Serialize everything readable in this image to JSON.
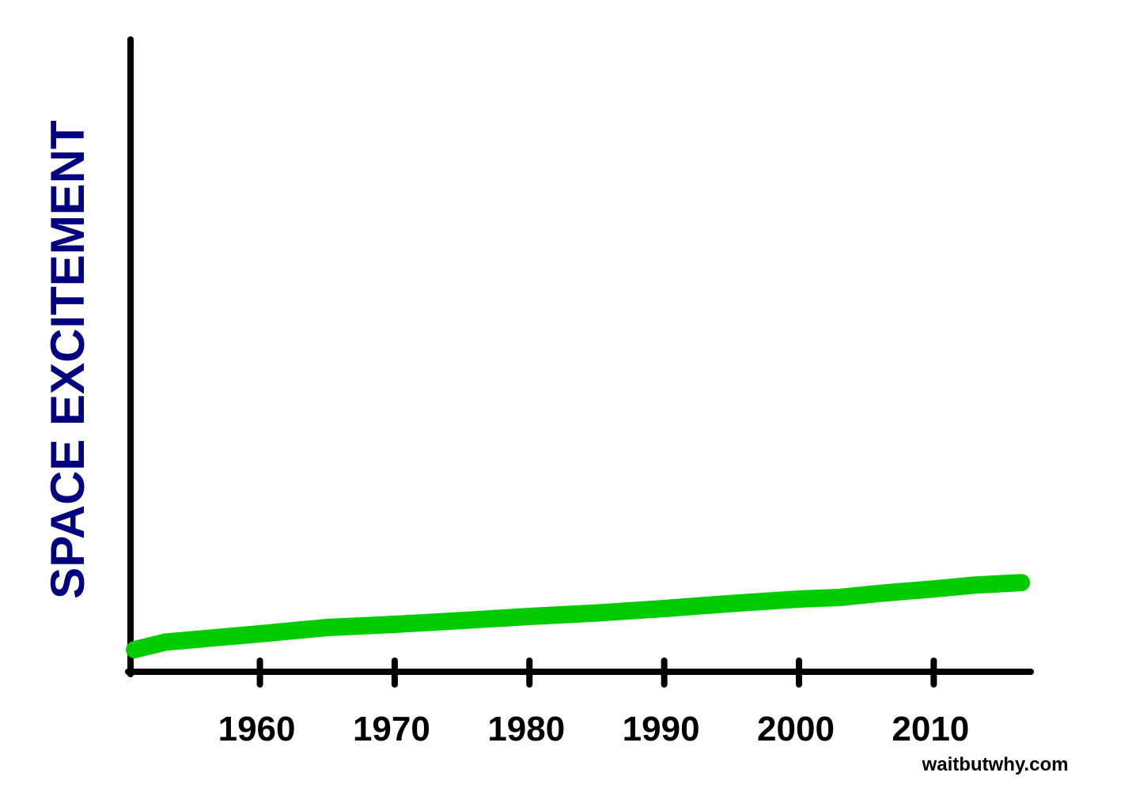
{
  "chart_data": {
    "type": "line",
    "y_label": "SPACE EXCITEMENT",
    "credit": "waitbutwhy.com",
    "xlim": [
      1950.4,
      2017.2
    ],
    "xticks": [
      1960,
      1970,
      1980,
      1990,
      2000,
      2010
    ],
    "ylim": [
      0,
      100
    ],
    "series": [
      {
        "color": "#00cc00",
        "x": [
          1950.7,
          1953,
          1960,
          1965,
          1970,
          1975,
          1980,
          1985,
          1990,
          1995,
          2000,
          2003,
          2006,
          2010,
          2013,
          2016.5
        ],
        "values": [
          3.5,
          4.7,
          6,
          7,
          7.5,
          8.1,
          8.75,
          9.3,
          10,
          10.8,
          11.5,
          11.75,
          12.4,
          13.1,
          13.7,
          14.1
        ]
      }
    ]
  }
}
